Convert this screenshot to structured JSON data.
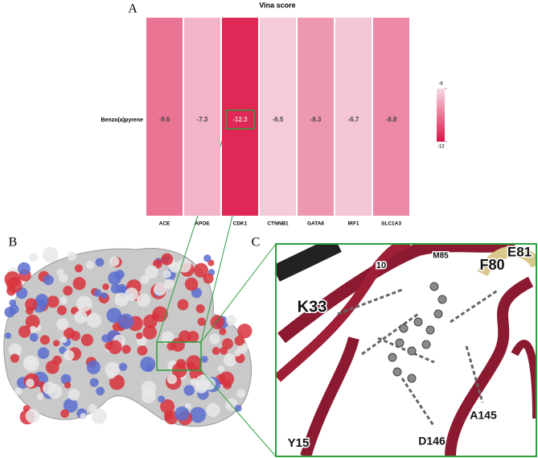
{
  "chart_data": {
    "type": "heatmap",
    "title": "Vina score",
    "row_label": "Benzo(a)pyrene",
    "categories": [
      "ACE",
      "APOE",
      "CDK1",
      "CTNNB1",
      "GATA6",
      "IRF1",
      "SLC1A3"
    ],
    "values": [
      -9.6,
      -7.3,
      -12.3,
      -6.5,
      -8.3,
      -6.7,
      -8.8
    ],
    "clim": [
      -13,
      -6
    ],
    "cticks": [
      -13,
      -6
    ],
    "colormap": [
      "#dc1446",
      "#f7d9e4"
    ],
    "highlight_color": "#2e9e3e"
  },
  "panel_labels": [
    "A",
    "B",
    "C"
  ],
  "residue_labels": [
    "K33",
    "F80",
    "E81",
    "M85",
    "A145",
    "D146",
    "Y15",
    "10"
  ]
}
